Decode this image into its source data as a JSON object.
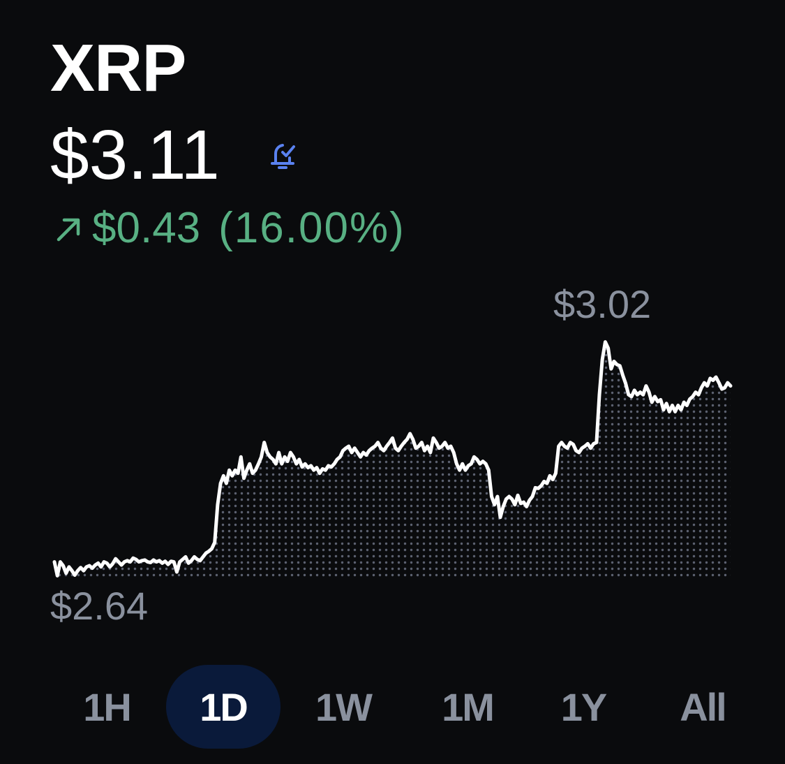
{
  "asset": {
    "name": "XRP",
    "price": "$3.11",
    "change_amount": "$0.43",
    "change_percent": "(16.00%)",
    "change_direction": "up",
    "change_color": "#58b083",
    "alert_icon": "bell-check-icon",
    "alert_color": "#5a82f0"
  },
  "chart_data": {
    "type": "area",
    "high_label": "$3.02",
    "low_label": "$2.64",
    "ylim": [
      2.64,
      3.02
    ],
    "line_color": "#ffffff",
    "fill": "dotted",
    "values": [
      2.666,
      2.644,
      2.666,
      2.66,
      2.648,
      2.658,
      2.652,
      2.645,
      2.652,
      2.657,
      2.652,
      2.658,
      2.66,
      2.656,
      2.661,
      2.664,
      2.658,
      2.666,
      2.664,
      2.658,
      2.663,
      2.671,
      2.666,
      2.661,
      2.666,
      2.668,
      2.666,
      2.672,
      2.67,
      2.666,
      2.668,
      2.669,
      2.666,
      2.665,
      2.669,
      2.666,
      2.668,
      2.664,
      2.667,
      2.662,
      2.667,
      2.666,
      2.65,
      2.666,
      2.67,
      2.674,
      2.664,
      2.668,
      2.674,
      2.67,
      2.668,
      2.674,
      2.68,
      2.683,
      2.687,
      2.697,
      2.757,
      2.791,
      2.803,
      2.791,
      2.812,
      2.803,
      2.812,
      2.807,
      2.833,
      2.799,
      2.812,
      2.822,
      2.807,
      2.812,
      2.822,
      2.833,
      2.856,
      2.84,
      2.833,
      2.829,
      2.822,
      2.84,
      2.822,
      2.833,
      2.826,
      2.84,
      2.833,
      2.822,
      2.829,
      2.817,
      2.822,
      2.816,
      2.819,
      2.812,
      2.816,
      2.807,
      2.814,
      2.812,
      2.819,
      2.817,
      2.822,
      2.829,
      2.833,
      2.843,
      2.847,
      2.85,
      2.84,
      2.847,
      2.84,
      2.833,
      2.84,
      2.836,
      2.843,
      2.847,
      2.85,
      2.856,
      2.847,
      2.843,
      2.85,
      2.856,
      2.863,
      2.847,
      2.843,
      2.85,
      2.856,
      2.861,
      2.87,
      2.861,
      2.847,
      2.85,
      2.856,
      2.843,
      2.85,
      2.84,
      2.863,
      2.856,
      2.847,
      2.85,
      2.856,
      2.847,
      2.85,
      2.84,
      2.822,
      2.812,
      2.822,
      2.812,
      2.819,
      2.822,
      2.833,
      2.829,
      2.822,
      2.826,
      2.822,
      2.812,
      2.77,
      2.757,
      2.77,
      2.737,
      2.754,
      2.766,
      2.77,
      2.766,
      2.757,
      2.772,
      2.759,
      2.761,
      2.754,
      2.764,
      2.77,
      2.784,
      2.783,
      2.787,
      2.794,
      2.791,
      2.803,
      2.797,
      2.807,
      2.85,
      2.856,
      2.85,
      2.847,
      2.856,
      2.853,
      2.843,
      2.84,
      2.847,
      2.85,
      2.854,
      2.847,
      2.854,
      2.856,
      2.932,
      2.988,
      3.016,
      3.006,
      2.973,
      2.985,
      2.98,
      2.978,
      2.963,
      2.95,
      2.932,
      2.929,
      2.939,
      2.932,
      2.936,
      2.932,
      2.946,
      2.936,
      2.92,
      2.929,
      2.921,
      2.924,
      2.908,
      2.918,
      2.905,
      2.915,
      2.905,
      2.915,
      2.908,
      2.92,
      2.915,
      2.925,
      2.929,
      2.936,
      2.932,
      2.943,
      2.951,
      2.946,
      2.958,
      2.955,
      2.96,
      2.951,
      2.941,
      2.943,
      2.951,
      2.946
    ]
  },
  "timeframes": [
    {
      "label": "1H",
      "active": false
    },
    {
      "label": "1D",
      "active": true
    },
    {
      "label": "1W",
      "active": false
    },
    {
      "label": "1M",
      "active": false
    },
    {
      "label": "1Y",
      "active": false
    },
    {
      "label": "All",
      "active": false
    }
  ]
}
